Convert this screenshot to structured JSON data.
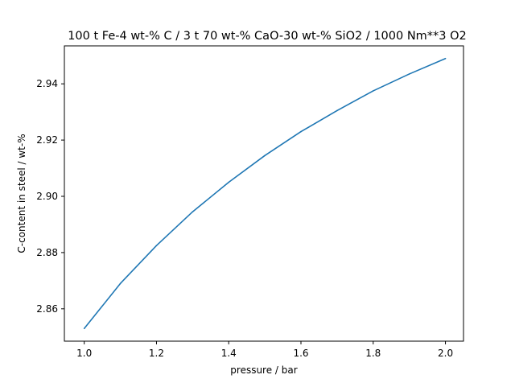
{
  "chart_data": {
    "type": "line",
    "title": "100 t Fe-4 wt-% C / 3 t 70 wt-% CaO-30 wt-% SiO2 / 1000 Nm**3 O2",
    "xlabel": "pressure / bar",
    "ylabel": "C-content in steel / wt-%",
    "xlim": [
      0.945,
      2.05
    ],
    "ylim": [
      2.8485,
      2.9535
    ],
    "xticks": [
      "1.0",
      "1.2",
      "1.4",
      "1.6",
      "1.8",
      "2.0"
    ],
    "yticks": [
      "2.86",
      "2.88",
      "2.90",
      "2.92",
      "2.94"
    ],
    "grid": false,
    "line_color": "#1f77b4",
    "x": [
      1.0,
      1.1,
      1.2,
      1.3,
      1.4,
      1.5,
      1.6,
      1.7,
      1.8,
      1.9,
      2.0
    ],
    "series": [
      {
        "values": [
          2.853,
          2.869,
          2.8825,
          2.8945,
          2.905,
          2.9145,
          2.923,
          2.9305,
          2.9375,
          2.9435,
          2.949
        ]
      }
    ]
  }
}
